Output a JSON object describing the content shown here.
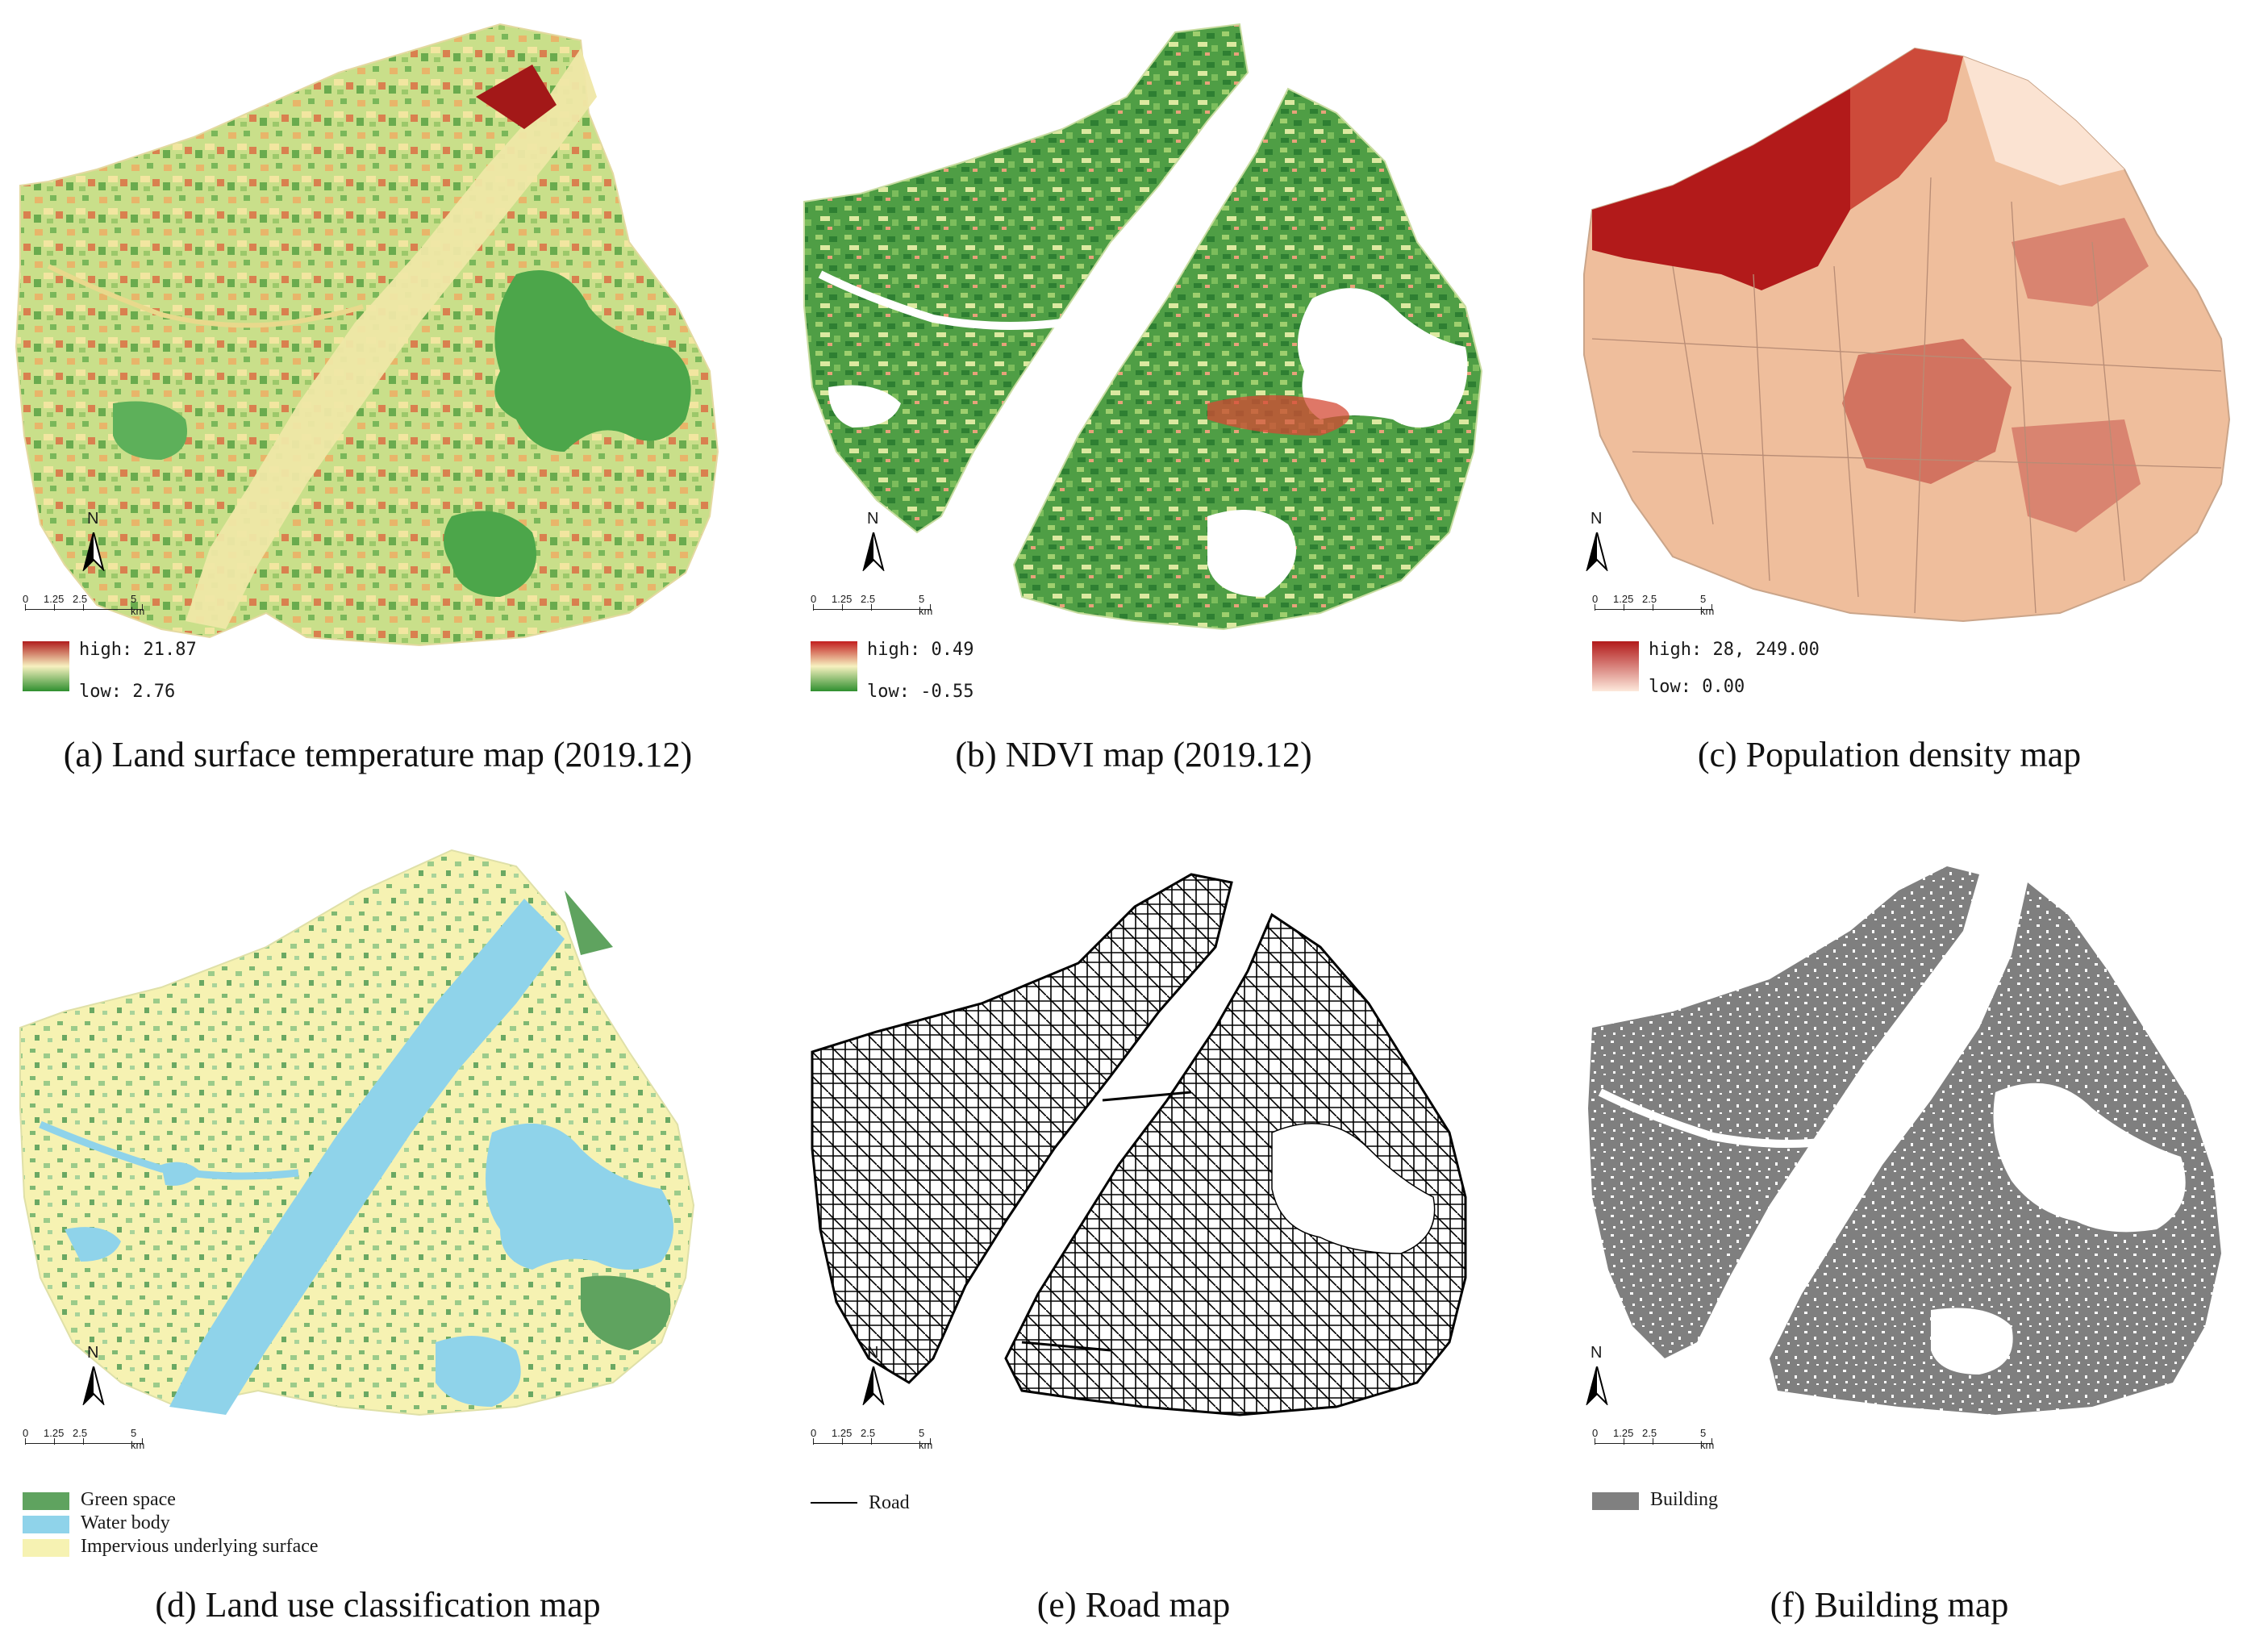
{
  "colors": {
    "lst_high": "#a31818",
    "lst_mid": "#f5efb0",
    "lst_low": "#2f8f2f",
    "ndvi_high": "#c21e1e",
    "ndvi_low": "#2f8f2f",
    "pop_high": "#b21a1a",
    "pop_low": "#fbe6d6",
    "green_space": "#5fa35f",
    "water_body": "#8fd3ea",
    "impervious": "#f6f2b2",
    "road": "#000000",
    "building": "#808080"
  },
  "icons": {
    "north_arrow": "north-arrow-icon"
  },
  "scalebar": {
    "labels": [
      "0",
      "1.25",
      "2.5",
      "5 km"
    ]
  },
  "north_label": "N",
  "panels": {
    "a": {
      "caption": "(a) Land surface temperature map (2019.12)",
      "legend_high": "high: 21.87",
      "legend_low": "low: 2.76"
    },
    "b": {
      "caption": "(b) NDVI map (2019.12)",
      "legend_high": "high: 0.49",
      "legend_low": "low: -0.55"
    },
    "c": {
      "caption": "(c) Population density map",
      "legend_high": "high: 28, 249.00",
      "legend_low": "low: 0.00"
    },
    "d": {
      "caption": "(d) Land use classification map",
      "legend_items": [
        "Green space",
        "Water body",
        "Impervious underlying surface"
      ]
    },
    "e": {
      "caption": "(e) Road map",
      "legend_items": [
        "Road"
      ]
    },
    "f": {
      "caption": "(f) Building map",
      "legend_items": [
        "Building"
      ]
    }
  }
}
